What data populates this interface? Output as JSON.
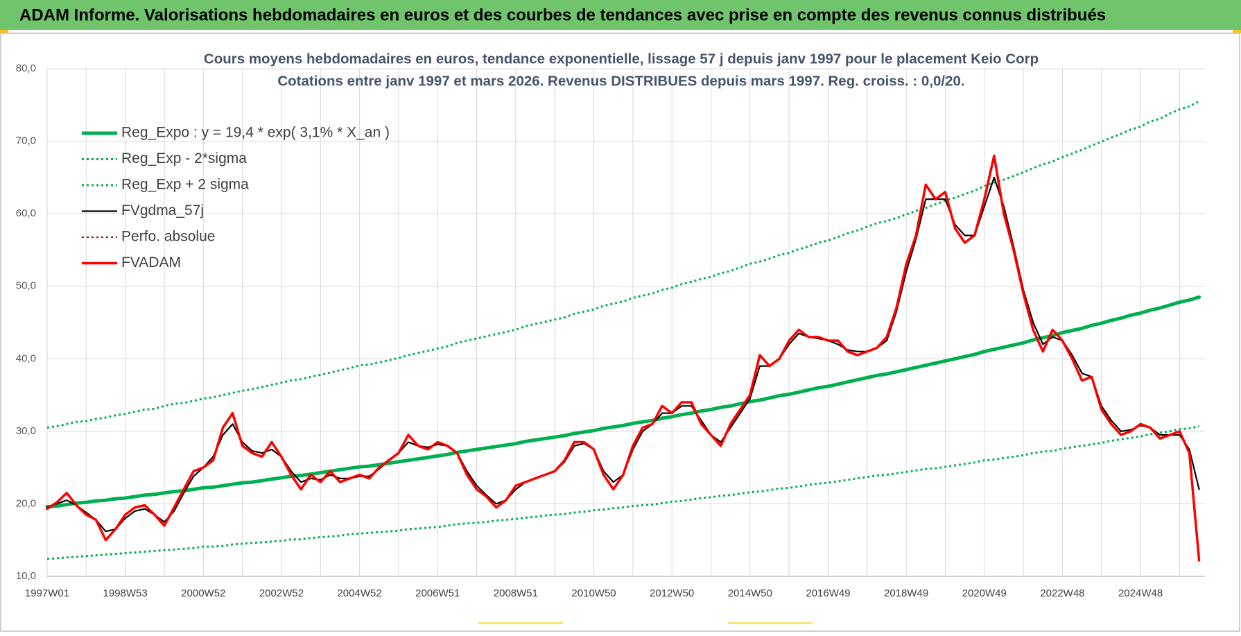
{
  "header": {
    "title": "ADAM Informe. Valorisations hebdomadaires en euros et des courbes de tendances avec prise en compte des revenus connus distribués"
  },
  "chart_data": {
    "type": "line",
    "title": "Cours moyens hebdomadaires en euros, tendance exponentielle, lissage 57 j depuis janv 1997 pour le placement Keio Corp",
    "subtitle": "Cotations entre janv 1997 et mars 2026. Revenus DISTRIBUES depuis mars 1997. Reg. croiss. : 0,0/20.",
    "categories": [
      "1997W01",
      null,
      null,
      null,
      null,
      null,
      null,
      null,
      "1998W53",
      null,
      null,
      null,
      null,
      null,
      null,
      null,
      "2000W52",
      null,
      null,
      null,
      null,
      null,
      null,
      null,
      "2002W52",
      null,
      null,
      null,
      null,
      null,
      null,
      null,
      "2004W52",
      null,
      null,
      null,
      null,
      null,
      null,
      null,
      "2006W51",
      null,
      null,
      null,
      null,
      null,
      null,
      null,
      "2008W51",
      null,
      null,
      null,
      null,
      null,
      null,
      null,
      "2010W50",
      null,
      null,
      null,
      null,
      null,
      null,
      null,
      "2012W50",
      null,
      null,
      null,
      null,
      null,
      null,
      null,
      "2014W50",
      null,
      null,
      null,
      null,
      null,
      null,
      null,
      "2016W49",
      null,
      null,
      null,
      null,
      null,
      null,
      null,
      "2018W49",
      null,
      null,
      null,
      null,
      null,
      null,
      null,
      "2020W49",
      null,
      null,
      null,
      null,
      null,
      null,
      null,
      "2022W48",
      null,
      null,
      null,
      null,
      null,
      null,
      null,
      "2024W48",
      null,
      null,
      null,
      null,
      null,
      null
    ],
    "ylim": [
      10,
      80
    ],
    "yticks": [
      {
        "value": 10,
        "label": "10,0"
      },
      {
        "value": 20,
        "label": "20,0"
      },
      {
        "value": 30,
        "label": "30,0"
      },
      {
        "value": 40,
        "label": "40,0"
      },
      {
        "value": 50,
        "label": "50,0"
      },
      {
        "value": 60,
        "label": "60,0"
      },
      {
        "value": 70,
        "label": "70,0"
      },
      {
        "value": 80,
        "label": "80,0"
      }
    ],
    "grid": true,
    "legend": "top-left",
    "series": [
      {
        "name": "Reg_Expo : y = 19,4 * exp( 3,1% *  X_an )",
        "color": "#00b050",
        "style": "solid",
        "width": 5,
        "values": [
          19.6,
          19.7,
          19.9,
          20.1,
          20.2,
          20.4,
          20.5,
          20.7,
          20.8,
          21.0,
          21.2,
          21.3,
          21.5,
          21.7,
          21.8,
          22.0,
          22.2,
          22.3,
          22.5,
          22.7,
          22.9,
          23.0,
          23.2,
          23.4,
          23.6,
          23.8,
          23.9,
          24.1,
          24.3,
          24.5,
          24.7,
          24.9,
          25.1,
          25.2,
          25.4,
          25.6,
          25.8,
          26.0,
          26.2,
          26.4,
          26.6,
          26.8,
          27.1,
          27.3,
          27.5,
          27.7,
          27.9,
          28.1,
          28.3,
          28.6,
          28.8,
          29.0,
          29.2,
          29.4,
          29.7,
          29.9,
          30.1,
          30.4,
          30.6,
          30.8,
          31.1,
          31.3,
          31.5,
          31.8,
          32.0,
          32.3,
          32.5,
          32.8,
          33.0,
          33.3,
          33.5,
          33.8,
          34.1,
          34.3,
          34.6,
          34.9,
          35.1,
          35.4,
          35.7,
          36.0,
          36.2,
          36.5,
          36.8,
          37.1,
          37.4,
          37.7,
          37.9,
          38.2,
          38.5,
          38.8,
          39.1,
          39.4,
          39.7,
          40.0,
          40.3,
          40.6,
          41.0,
          41.3,
          41.6,
          41.9,
          42.2,
          42.6,
          42.9,
          43.2,
          43.6,
          43.9,
          44.2,
          44.6,
          44.9,
          45.3,
          45.6,
          46.0,
          46.3,
          46.7,
          47.0,
          47.4,
          47.8,
          48.1,
          48.5
        ]
      },
      {
        "name": "Reg_Exp - 2*sigma",
        "color": "#00b050",
        "style": "dotted",
        "width": 3,
        "values": [
          12.4,
          12.5,
          12.6,
          12.7,
          12.8,
          12.9,
          13.0,
          13.1,
          13.2,
          13.3,
          13.4,
          13.5,
          13.6,
          13.7,
          13.8,
          13.9,
          14.1,
          14.1,
          14.2,
          14.4,
          14.5,
          14.6,
          14.7,
          14.8,
          14.9,
          15.1,
          15.1,
          15.3,
          15.4,
          15.5,
          15.6,
          15.8,
          15.9,
          16.0,
          16.1,
          16.2,
          16.3,
          16.5,
          16.6,
          16.7,
          16.8,
          17.0,
          17.2,
          17.3,
          17.4,
          17.5,
          17.7,
          17.8,
          17.9,
          18.1,
          18.2,
          18.4,
          18.5,
          18.6,
          18.8,
          18.9,
          19.1,
          19.2,
          19.4,
          19.5,
          19.7,
          19.8,
          19.9,
          20.1,
          20.3,
          20.4,
          20.6,
          20.8,
          20.9,
          21.1,
          21.2,
          21.4,
          21.6,
          21.7,
          21.9,
          22.1,
          22.2,
          22.4,
          22.6,
          22.8,
          22.9,
          23.1,
          23.3,
          23.5,
          23.7,
          23.9,
          24.0,
          24.2,
          24.4,
          24.6,
          24.8,
          24.9,
          25.1,
          25.3,
          25.5,
          25.7,
          26.0,
          26.1,
          26.3,
          26.5,
          26.7,
          27.0,
          27.2,
          27.3,
          27.6,
          27.8,
          28.0,
          28.2,
          28.4,
          28.7,
          28.9,
          29.1,
          29.3,
          29.6,
          29.8,
          30.0,
          30.3,
          30.4,
          30.7
        ]
      },
      {
        "name": "Reg_Exp + 2 sigma",
        "color": "#00b050",
        "style": "dotted",
        "width": 3,
        "values": [
          30.5,
          30.7,
          31.0,
          31.3,
          31.4,
          31.7,
          31.9,
          32.2,
          32.4,
          32.7,
          33.0,
          33.1,
          33.5,
          33.8,
          33.9,
          34.2,
          34.5,
          34.7,
          35.0,
          35.3,
          35.6,
          35.8,
          36.1,
          36.4,
          36.7,
          37.0,
          37.2,
          37.5,
          37.8,
          38.1,
          38.4,
          38.7,
          39.1,
          39.2,
          39.5,
          39.8,
          40.1,
          40.5,
          40.8,
          41.1,
          41.4,
          41.7,
          42.2,
          42.5,
          42.8,
          43.1,
          43.4,
          43.7,
          44.0,
          44.5,
          44.8,
          45.1,
          45.4,
          45.7,
          46.2,
          46.5,
          46.8,
          47.3,
          47.6,
          47.9,
          48.4,
          48.7,
          49.0,
          49.5,
          49.8,
          50.3,
          50.6,
          51.0,
          51.3,
          51.8,
          52.1,
          52.6,
          53.1,
          53.4,
          53.8,
          54.3,
          54.6,
          55.1,
          55.5,
          56.0,
          56.3,
          56.8,
          57.3,
          57.7,
          58.2,
          58.7,
          59.0,
          59.4,
          59.9,
          60.4,
          60.8,
          61.3,
          61.8,
          62.2,
          62.7,
          63.2,
          63.8,
          64.3,
          64.7,
          65.2,
          65.7,
          66.3,
          66.8,
          67.2,
          67.8,
          68.3,
          68.8,
          69.4,
          69.9,
          70.5,
          71.0,
          71.6,
          72.0,
          72.7,
          73.1,
          73.8,
          74.4,
          74.8,
          75.5
        ]
      },
      {
        "name": "FVgdma_57j",
        "color": "#000000",
        "style": "solid",
        "width": 2.2,
        "values": [
          19.5,
          20,
          20.5,
          19.8,
          18.8,
          17.8,
          16.2,
          16.5,
          18,
          19,
          19.3,
          18.5,
          17.5,
          19,
          21.5,
          23.8,
          25,
          26.5,
          29.5,
          31,
          28.5,
          27.3,
          27,
          27.5,
          26.5,
          24.5,
          23,
          23.5,
          23.3,
          24,
          23.5,
          23.5,
          23.8,
          23.8,
          24.8,
          26,
          27,
          28.5,
          28,
          27.8,
          28.2,
          28,
          27,
          24.5,
          22.5,
          21.2,
          20,
          20.5,
          22,
          23,
          23.5,
          24,
          24.5,
          25.8,
          28,
          28.3,
          27.5,
          24.5,
          23,
          24,
          27.5,
          30,
          31,
          32.5,
          32.5,
          33.5,
          33.5,
          31.5,
          29.5,
          28.5,
          30.5,
          32.5,
          34.5,
          39,
          39,
          40,
          42,
          43.5,
          43,
          42.8,
          42.5,
          42,
          41.2,
          41,
          41,
          41.5,
          42.5,
          46.5,
          52,
          56.5,
          62,
          62,
          62,
          58.5,
          57,
          57,
          61,
          65,
          61,
          55.5,
          49.5,
          45,
          42,
          43,
          42.5,
          40.5,
          38,
          37.5,
          33.5,
          31.5,
          30,
          30.2,
          30.8,
          30.5,
          29.5,
          29.5,
          29.5,
          27.5,
          22
        ]
      },
      {
        "name": "Perfo. absolue",
        "color": "#c00000",
        "style": "dotted",
        "width": 2,
        "values": [
          null,
          null,
          null,
          null,
          null,
          null,
          null,
          null,
          null,
          null,
          null,
          null,
          null,
          null,
          null,
          null,
          null,
          null,
          null,
          null,
          null,
          null,
          null,
          null,
          null,
          null,
          null,
          null,
          null,
          null,
          null,
          null,
          null,
          null,
          null,
          null,
          null,
          null,
          null,
          null,
          null,
          null,
          null,
          null,
          null,
          null,
          null,
          null,
          null,
          null,
          null,
          null,
          null,
          null,
          null,
          null,
          null,
          null,
          null,
          null,
          null,
          null,
          null,
          null,
          null,
          null,
          null,
          null,
          null,
          null,
          null,
          null,
          null,
          null,
          null,
          null,
          null,
          null,
          null,
          null,
          null,
          null,
          null,
          null,
          null,
          null,
          null,
          null,
          null,
          null,
          null,
          null,
          null,
          null,
          null,
          null,
          null,
          null,
          null,
          null,
          null,
          null,
          null,
          null,
          null,
          null,
          null,
          null,
          null,
          null,
          null,
          null,
          null,
          null,
          null,
          null,
          null,
          null,
          null
        ]
      },
      {
        "name": "FVADAM",
        "color": "#ff0000",
        "style": "solid",
        "width": 3.5,
        "values": [
          19.3,
          20.2,
          21.5,
          19.8,
          18.5,
          17.8,
          15.0,
          16.5,
          18.5,
          19.5,
          19.8,
          18.5,
          17,
          19.5,
          22,
          24.5,
          25,
          26,
          30.5,
          32.5,
          28,
          27,
          26.5,
          28.5,
          26.5,
          24,
          22,
          24,
          23,
          24.5,
          23,
          23.5,
          24,
          23.5,
          25,
          26,
          27,
          29.5,
          28,
          27.5,
          28.5,
          28,
          27,
          24,
          22,
          21,
          19.5,
          20.5,
          22.5,
          23,
          23.5,
          24,
          24.5,
          26,
          28.5,
          28.5,
          27.5,
          24,
          22,
          24,
          28,
          30.5,
          31,
          33.5,
          32.5,
          34,
          34,
          31,
          29.5,
          28,
          31,
          33,
          35,
          40.5,
          39,
          40,
          42.5,
          44,
          43,
          43,
          42.5,
          42.5,
          41,
          40.5,
          41,
          41.5,
          43,
          47,
          53,
          57,
          64,
          62,
          63,
          58,
          56,
          57,
          62,
          68,
          60,
          55,
          49,
          44,
          41,
          44,
          42.5,
          40,
          37,
          37.5,
          33,
          31,
          29.5,
          30,
          31,
          30.5,
          29,
          29.5,
          30,
          27,
          12.2
        ]
      }
    ]
  }
}
